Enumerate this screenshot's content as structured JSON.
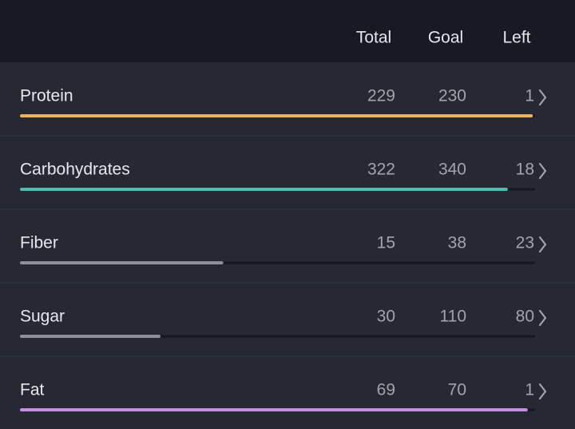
{
  "header": {
    "columns": [
      "Total",
      "Goal",
      "Left"
    ]
  },
  "rows": [
    {
      "name": "Protein",
      "total": 229,
      "goal": 230,
      "left": 1,
      "color": "#e8b35c"
    },
    {
      "name": "Carbohydrates",
      "total": 322,
      "goal": 340,
      "left": 18,
      "color": "#52bab1"
    },
    {
      "name": "Fiber",
      "total": 15,
      "goal": 38,
      "left": 23,
      "color": "#8f9097"
    },
    {
      "name": "Sugar",
      "total": 30,
      "goal": 110,
      "left": 80,
      "color": "#8f9097"
    },
    {
      "name": "Fat",
      "total": 69,
      "goal": 70,
      "left": 1,
      "color": "#c58ee0"
    }
  ]
}
